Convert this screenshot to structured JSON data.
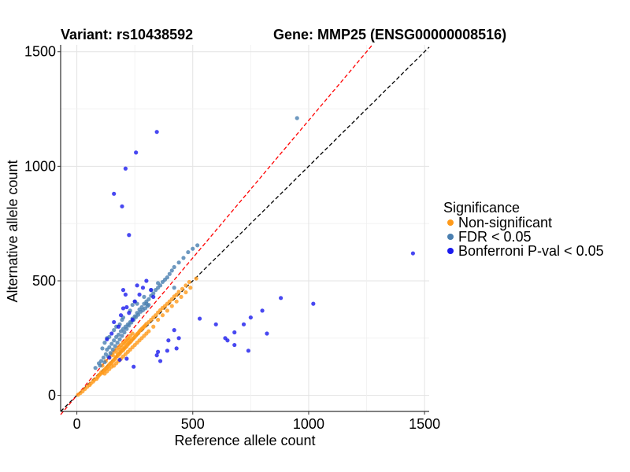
{
  "chart_data": {
    "type": "scatter",
    "title_left": "Variant: rs10438592",
    "title_right": "Gene: MMP25 (ENSG00000008516)",
    "xlabel": "Reference allele count",
    "ylabel": "Alternative allele count",
    "xlim": [
      -70,
      1520
    ],
    "ylim": [
      -70,
      1530
    ],
    "x_ticks": [
      0,
      500,
      1000,
      1500
    ],
    "y_ticks": [
      0,
      500,
      1000,
      1500
    ],
    "grid": true,
    "reference_lines": [
      {
        "slope": 1.0,
        "color": "#000000",
        "style": "dashed"
      },
      {
        "slope": 1.2,
        "color": "#ff0000",
        "style": "dashed"
      }
    ],
    "legend": {
      "title": "Significance",
      "position": "right",
      "entries": [
        {
          "label": "Non-significant",
          "color": "#ff9a1a"
        },
        {
          "label": "FDR < 0.05",
          "color": "#4a7fb0"
        },
        {
          "label": "Bonferroni P-val < 0.05",
          "color": "#1a1aee"
        }
      ]
    },
    "series": [
      {
        "name": "Non-significant",
        "color": "#ff9a1a",
        "points": [
          [
            5,
            3
          ],
          [
            15,
            10
          ],
          [
            25,
            18
          ],
          [
            35,
            28
          ],
          [
            45,
            38
          ],
          [
            55,
            45
          ],
          [
            60,
            52
          ],
          [
            70,
            60
          ],
          [
            75,
            68
          ],
          [
            85,
            72
          ],
          [
            90,
            80
          ],
          [
            95,
            88
          ],
          [
            100,
            92
          ],
          [
            105,
            100
          ],
          [
            110,
            98
          ],
          [
            115,
            108
          ],
          [
            120,
            112
          ],
          [
            125,
            118
          ],
          [
            130,
            122
          ],
          [
            135,
            128
          ],
          [
            140,
            135
          ],
          [
            145,
            140
          ],
          [
            150,
            142
          ],
          [
            155,
            150
          ],
          [
            160,
            155
          ],
          [
            165,
            160
          ],
          [
            170,
            168
          ],
          [
            175,
            172
          ],
          [
            180,
            178
          ],
          [
            185,
            182
          ],
          [
            190,
            190
          ],
          [
            195,
            195
          ],
          [
            200,
            198
          ],
          [
            205,
            205
          ],
          [
            210,
            210
          ],
          [
            215,
            215
          ],
          [
            220,
            222
          ],
          [
            225,
            228
          ],
          [
            230,
            232
          ],
          [
            235,
            238
          ],
          [
            240,
            245
          ],
          [
            245,
            250
          ],
          [
            250,
            255
          ],
          [
            255,
            262
          ],
          [
            260,
            268
          ],
          [
            265,
            272
          ],
          [
            270,
            280
          ],
          [
            275,
            285
          ],
          [
            280,
            290
          ],
          [
            285,
            295
          ],
          [
            290,
            300
          ],
          [
            295,
            305
          ],
          [
            300,
            312
          ],
          [
            310,
            320
          ],
          [
            320,
            330
          ],
          [
            330,
            340
          ],
          [
            340,
            350
          ],
          [
            350,
            362
          ],
          [
            360,
            372
          ],
          [
            370,
            382
          ],
          [
            380,
            390
          ],
          [
            390,
            400
          ],
          [
            400,
            410
          ],
          [
            410,
            420
          ],
          [
            420,
            432
          ],
          [
            430,
            440
          ],
          [
            440,
            452
          ],
          [
            455,
            465
          ],
          [
            470,
            480
          ],
          [
            485,
            495
          ],
          [
            120,
            95
          ],
          [
            130,
            105
          ],
          [
            140,
            115
          ],
          [
            150,
            125
          ],
          [
            160,
            130
          ],
          [
            170,
            140
          ],
          [
            180,
            150
          ],
          [
            190,
            160
          ],
          [
            200,
            170
          ],
          [
            210,
            180
          ],
          [
            220,
            190
          ],
          [
            230,
            200
          ],
          [
            240,
            210
          ],
          [
            250,
            220
          ],
          [
            260,
            230
          ],
          [
            270,
            240
          ],
          [
            280,
            250
          ],
          [
            290,
            260
          ],
          [
            300,
            270
          ],
          [
            310,
            280
          ],
          [
            150,
            180
          ],
          [
            160,
            190
          ],
          [
            170,
            200
          ],
          [
            180,
            210
          ],
          [
            190,
            220
          ],
          [
            200,
            230
          ],
          [
            210,
            240
          ],
          [
            220,
            250
          ],
          [
            230,
            260
          ],
          [
            240,
            270
          ],
          [
            110,
            130
          ],
          [
            125,
            150
          ],
          [
            140,
            165
          ],
          [
            155,
            175
          ],
          [
            175,
            185
          ],
          [
            185,
            200
          ],
          [
            195,
            210
          ],
          [
            205,
            225
          ],
          [
            215,
            235
          ],
          [
            225,
            245
          ],
          [
            330,
            300
          ],
          [
            350,
            330
          ],
          [
            370,
            350
          ],
          [
            390,
            370
          ],
          [
            410,
            390
          ],
          [
            430,
            410
          ],
          [
            450,
            430
          ],
          [
            470,
            450
          ],
          [
            490,
            470
          ],
          [
            515,
            510
          ]
        ]
      },
      {
        "name": "FDR < 0.05",
        "color": "#4a7fb0",
        "points": [
          [
            80,
            120
          ],
          [
            95,
            140
          ],
          [
            105,
            150
          ],
          [
            115,
            165
          ],
          [
            125,
            180
          ],
          [
            130,
            200
          ],
          [
            140,
            210
          ],
          [
            150,
            225
          ],
          [
            160,
            240
          ],
          [
            170,
            255
          ],
          [
            180,
            265
          ],
          [
            190,
            280
          ],
          [
            200,
            290
          ],
          [
            210,
            300
          ],
          [
            220,
            310
          ],
          [
            230,
            320
          ],
          [
            240,
            335
          ],
          [
            250,
            345
          ],
          [
            260,
            360
          ],
          [
            270,
            375
          ],
          [
            280,
            385
          ],
          [
            290,
            400
          ],
          [
            300,
            410
          ],
          [
            310,
            420
          ],
          [
            320,
            435
          ],
          [
            330,
            445
          ],
          [
            340,
            460
          ],
          [
            350,
            470
          ],
          [
            360,
            480
          ],
          [
            370,
            495
          ],
          [
            380,
            505
          ],
          [
            390,
            515
          ],
          [
            400,
            530
          ],
          [
            410,
            545
          ],
          [
            420,
            560
          ],
          [
            440,
            580
          ],
          [
            460,
            600
          ],
          [
            480,
            625
          ],
          [
            500,
            640
          ],
          [
            520,
            655
          ],
          [
            100,
            130
          ],
          [
            120,
            145
          ],
          [
            135,
            170
          ],
          [
            145,
            185
          ],
          [
            155,
            200
          ],
          [
            165,
            215
          ],
          [
            175,
            230
          ],
          [
            185,
            245
          ],
          [
            195,
            260
          ],
          [
            205,
            275
          ],
          [
            215,
            290
          ],
          [
            225,
            305
          ],
          [
            235,
            318
          ],
          [
            245,
            330
          ],
          [
            255,
            342
          ],
          [
            265,
            352
          ],
          [
            275,
            365
          ],
          [
            285,
            372
          ],
          [
            295,
            380
          ],
          [
            305,
            390
          ],
          [
            110,
            205
          ],
          [
            140,
            255
          ],
          [
            170,
            300
          ],
          [
            200,
            340
          ],
          [
            230,
            370
          ],
          [
            260,
            400
          ],
          [
            290,
            430
          ],
          [
            320,
            460
          ],
          [
            350,
            490
          ],
          [
            420,
            470
          ],
          [
            950,
            1210
          ],
          [
            300,
            400
          ],
          [
            310,
            395
          ],
          [
            250,
            410
          ],
          [
            240,
            395
          ],
          [
            195,
            330
          ],
          [
            185,
            310
          ],
          [
            160,
            285
          ],
          [
            130,
            250
          ],
          [
            120,
            230
          ]
        ]
      },
      {
        "name": "Bonferroni P-val < 0.05",
        "color": "#1a1aee",
        "points": [
          [
            345,
            1150
          ],
          [
            255,
            1060
          ],
          [
            210,
            990
          ],
          [
            160,
            880
          ],
          [
            195,
            825
          ],
          [
            225,
            700
          ],
          [
            130,
            245
          ],
          [
            150,
            270
          ],
          [
            160,
            320
          ],
          [
            180,
            300
          ],
          [
            190,
            350
          ],
          [
            200,
            380
          ],
          [
            215,
            385
          ],
          [
            225,
            360
          ],
          [
            240,
            330
          ],
          [
            260,
            480
          ],
          [
            300,
            500
          ],
          [
            330,
            430
          ],
          [
            320,
            460
          ],
          [
            200,
            460
          ],
          [
            210,
            440
          ],
          [
            250,
            410
          ],
          [
            270,
            440
          ],
          [
            285,
            470
          ],
          [
            350,
            190
          ],
          [
            360,
            150
          ],
          [
            345,
            175
          ],
          [
            395,
            240
          ],
          [
            420,
            285
          ],
          [
            440,
            250
          ],
          [
            430,
            205
          ],
          [
            390,
            195
          ],
          [
            215,
            160
          ],
          [
            185,
            155
          ],
          [
            140,
            165
          ],
          [
            530,
            335
          ],
          [
            600,
            310
          ],
          [
            640,
            250
          ],
          [
            650,
            240
          ],
          [
            680,
            275
          ],
          [
            680,
            220
          ],
          [
            720,
            310
          ],
          [
            740,
            195
          ],
          [
            750,
            340
          ],
          [
            800,
            370
          ],
          [
            820,
            270
          ],
          [
            880,
            425
          ],
          [
            1020,
            400
          ],
          [
            1450,
            620
          ],
          [
            245,
            125
          ]
        ]
      }
    ]
  }
}
